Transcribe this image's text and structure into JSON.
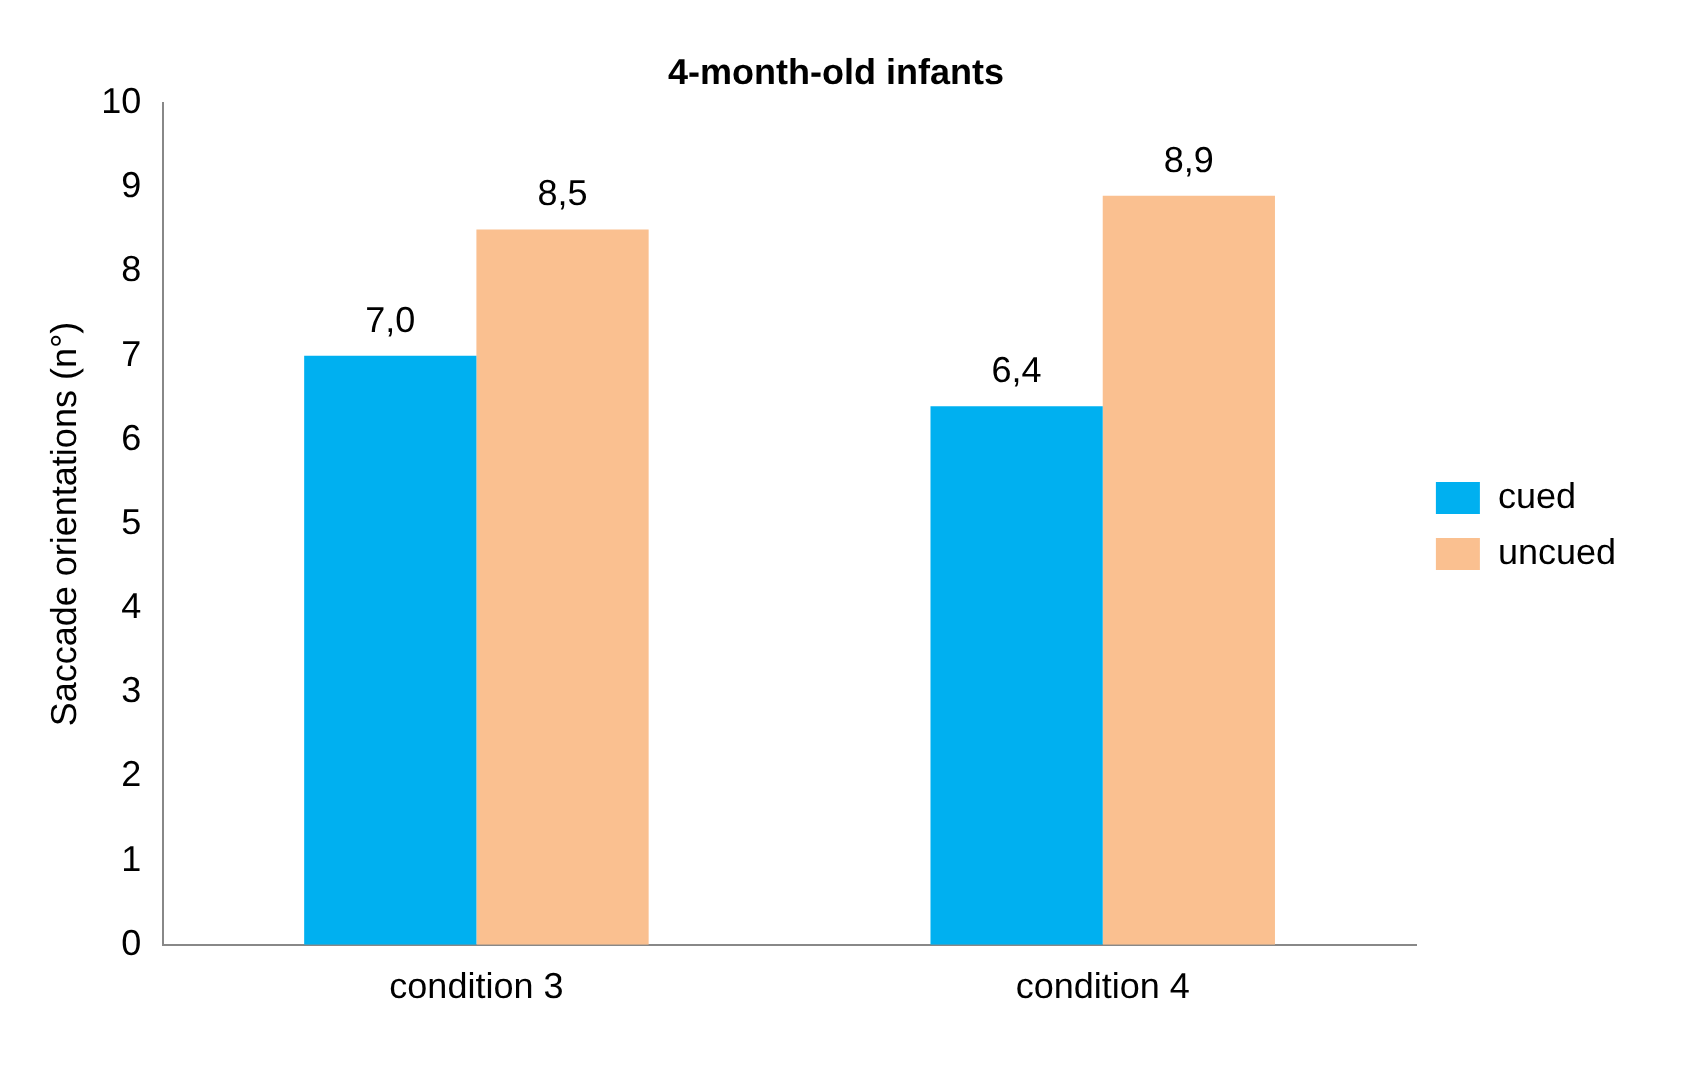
{
  "chart_data": {
    "type": "bar",
    "title": "4-month-old infants",
    "ylabel": "Saccade orientations (n°)",
    "categories": [
      "condition 3",
      "condition 4"
    ],
    "series": [
      {
        "name": "cued",
        "color": "#00b0f0",
        "values": [
          7.0,
          6.4
        ],
        "value_labels": [
          "7,0",
          "6,4"
        ]
      },
      {
        "name": "uncued",
        "color": "#fac090",
        "values": [
          8.5,
          8.9
        ],
        "value_labels": [
          "8,5",
          "8,9"
        ]
      }
    ],
    "ylim": [
      0,
      10
    ],
    "yticks": [
      0,
      1,
      2,
      3,
      4,
      5,
      6,
      7,
      8,
      9,
      10
    ],
    "grid": false,
    "legend": "right"
  }
}
